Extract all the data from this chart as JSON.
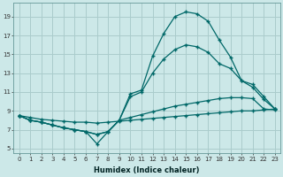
{
  "xlabel": "Humidex (Indice chaleur)",
  "bg_color": "#cce8e8",
  "grid_color": "#aacccc",
  "line_color": "#006868",
  "xlim": [
    -0.5,
    23.5
  ],
  "ylim": [
    4.5,
    20.5
  ],
  "xticks": [
    0,
    1,
    2,
    3,
    4,
    5,
    6,
    7,
    8,
    9,
    10,
    11,
    12,
    13,
    14,
    15,
    16,
    17,
    18,
    19,
    20,
    21,
    22,
    23
  ],
  "yticks": [
    5,
    7,
    9,
    11,
    13,
    15,
    17,
    19
  ],
  "line_flat": {
    "x": [
      0,
      1,
      2,
      3,
      4,
      5,
      6,
      7,
      8,
      9,
      10,
      11,
      12,
      13,
      14,
      15,
      16,
      17,
      18,
      19,
      20,
      21,
      22,
      23
    ],
    "y": [
      8.5,
      8.3,
      8.1,
      8.0,
      7.9,
      7.8,
      7.8,
      7.7,
      7.8,
      7.9,
      8.0,
      8.1,
      8.2,
      8.3,
      8.4,
      8.5,
      8.6,
      8.7,
      8.8,
      8.9,
      9.0,
      9.0,
      9.1,
      9.2
    ]
  },
  "line_dip": {
    "x": [
      0,
      1,
      2,
      3,
      4,
      5,
      6,
      7,
      8,
      9,
      10,
      11,
      12,
      13,
      14,
      15,
      16,
      17,
      18,
      19,
      20,
      21,
      22,
      23
    ],
    "y": [
      8.5,
      8.0,
      7.8,
      7.5,
      7.2,
      7.0,
      6.8,
      5.5,
      6.8,
      8.0,
      8.3,
      8.6,
      8.9,
      9.2,
      9.5,
      9.7,
      9.9,
      10.1,
      10.3,
      10.4,
      10.4,
      10.3,
      9.2,
      9.1
    ]
  },
  "line_mid": {
    "x": [
      0,
      1,
      2,
      3,
      4,
      5,
      6,
      7,
      8,
      9,
      10,
      11,
      12,
      13,
      14,
      15,
      16,
      17,
      18,
      19,
      20,
      21,
      22,
      23
    ],
    "y": [
      8.5,
      8.0,
      7.8,
      7.5,
      7.2,
      7.0,
      6.8,
      6.5,
      6.8,
      8.0,
      10.5,
      11.0,
      13.0,
      14.5,
      15.5,
      16.0,
      15.8,
      15.2,
      14.0,
      13.5,
      12.2,
      11.8,
      10.5,
      9.2
    ]
  },
  "line_high": {
    "x": [
      0,
      1,
      2,
      3,
      4,
      5,
      6,
      7,
      8,
      9,
      10,
      11,
      12,
      13,
      14,
      15,
      16,
      17,
      18,
      19,
      20,
      21,
      22,
      23
    ],
    "y": [
      8.5,
      8.0,
      7.8,
      7.5,
      7.2,
      7.0,
      6.8,
      6.5,
      6.8,
      8.0,
      10.8,
      11.2,
      14.8,
      17.2,
      19.0,
      19.5,
      19.3,
      18.5,
      16.5,
      14.7,
      12.2,
      11.5,
      10.2,
      9.2
    ]
  }
}
